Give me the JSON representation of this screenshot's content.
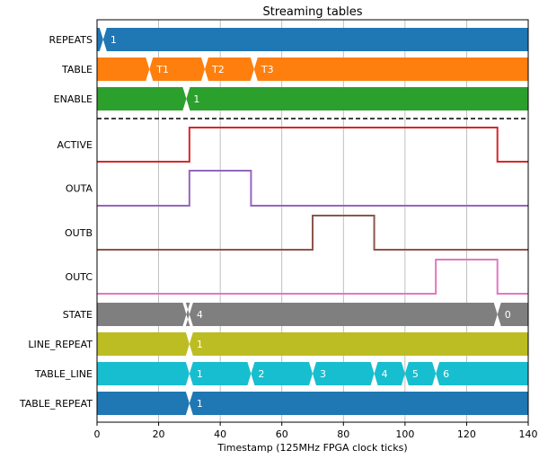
{
  "chart_data": {
    "type": "timing",
    "title": "Streaming tables",
    "xlabel": "Timestamp (125MHz FPGA clock ticks)",
    "xlim": [
      0,
      140
    ],
    "xticks": [
      0,
      20,
      40,
      60,
      80,
      100,
      120,
      140
    ],
    "grid": true,
    "rows": [
      {
        "name": "REPEATS",
        "kind": "bus",
        "color": "#1f77b4",
        "changes": [
          {
            "x": 2,
            "label": "1"
          }
        ]
      },
      {
        "name": "TABLE",
        "kind": "bus",
        "color": "#ff7f0e",
        "changes": [
          {
            "x": 17,
            "label": "T1"
          },
          {
            "x": 35,
            "label": "T2"
          },
          {
            "x": 51,
            "label": "T3"
          }
        ]
      },
      {
        "name": "ENABLE",
        "kind": "bus",
        "color": "#2ca02c",
        "changes": [
          {
            "x": 29,
            "label": "1"
          }
        ]
      },
      {
        "name": "ACTIVE",
        "kind": "bit",
        "color": "#d62728",
        "steps": [
          [
            0,
            0
          ],
          [
            30,
            1
          ],
          [
            130,
            0
          ]
        ]
      },
      {
        "name": "OUTA",
        "kind": "bit",
        "color": "#9467bd",
        "steps": [
          [
            0,
            0
          ],
          [
            30,
            1
          ],
          [
            50,
            0
          ]
        ]
      },
      {
        "name": "OUTB",
        "kind": "bit",
        "color": "#8c564b",
        "steps": [
          [
            0,
            0
          ],
          [
            70,
            1
          ],
          [
            90,
            0
          ]
        ]
      },
      {
        "name": "OUTC",
        "kind": "bit",
        "color": "#e377c2",
        "steps": [
          [
            0,
            0
          ],
          [
            110,
            1
          ],
          [
            130,
            0
          ]
        ]
      },
      {
        "name": "STATE",
        "kind": "bus",
        "color": "#7f7f7f",
        "changes": [
          {
            "x": 29,
            "label": ""
          },
          {
            "x": 30,
            "label": "4"
          },
          {
            "x": 130,
            "label": "0"
          }
        ]
      },
      {
        "name": "LINE_REPEAT",
        "kind": "bus",
        "color": "#bcbd22",
        "changes": [
          {
            "x": 30,
            "label": "1"
          }
        ]
      },
      {
        "name": "TABLE_LINE",
        "kind": "bus",
        "color": "#17becf",
        "changes": [
          {
            "x": 30,
            "label": "1"
          },
          {
            "x": 50,
            "label": "2"
          },
          {
            "x": 70,
            "label": "3"
          },
          {
            "x": 90,
            "label": "4"
          },
          {
            "x": 100,
            "label": "5"
          },
          {
            "x": 110,
            "label": "6"
          }
        ]
      },
      {
        "name": "TABLE_REPEAT",
        "kind": "bus",
        "color": "#1f77b4",
        "changes": [
          {
            "x": 30,
            "label": "1"
          }
        ]
      }
    ]
  }
}
